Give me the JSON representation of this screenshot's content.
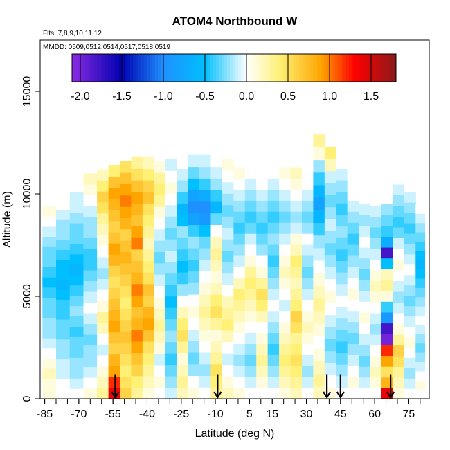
{
  "chart_data": {
    "type": "heatmap",
    "title": "ATOM4 Northbound W",
    "subtitle_flights": "Flts: 7,8,9,10,11,12",
    "subtitle_dates": "MMDD: 0509,0512,0514,0517,0518,0519",
    "xlabel": "Latitude (deg N)",
    "ylabel": "Altitude (m)",
    "xlim": [
      -87,
      84
    ],
    "ylim": [
      0,
      17500
    ],
    "x_ticks": [
      -85,
      -70,
      -55,
      -40,
      -25,
      -10,
      5,
      15,
      30,
      45,
      60,
      75
    ],
    "x_tick_labels": [
      "-85",
      "-70",
      "-55",
      "-40",
      "-25",
      "-10",
      "5",
      "15",
      "30",
      "45",
      "60",
      "75"
    ],
    "y_ticks": [
      0,
      5000,
      10000,
      15000
    ],
    "y_tick_labels": [
      "0",
      "5000",
      "10000",
      "15000"
    ],
    "colorbar": {
      "range": [
        -2.1,
        1.8
      ],
      "ticks": [
        -2.0,
        -1.5,
        -1.0,
        -0.5,
        0.0,
        0.5,
        1.0,
        1.5
      ],
      "tick_labels": [
        "-2.0",
        "-1.5",
        "-1.0",
        "-0.5",
        "0.0",
        "0.5",
        "1.0",
        "1.5"
      ],
      "colors": [
        "#8a2be2",
        "#0000b0",
        "#1e90ff",
        "#00bfff",
        "#ffffff",
        "#fff176",
        "#ffa500",
        "#ff0000",
        "#8b1a1a"
      ]
    },
    "arrow_latitudes": [
      -54,
      -9,
      39,
      45,
      67
    ],
    "columns": [
      {
        "x0": -86,
        "x1": -80,
        "top": 10400,
        "values": [
          0.1,
          0.1,
          0.2,
          0.1,
          0.0,
          -0.1,
          -0.2,
          -0.2,
          -0.3,
          -0.3,
          -0.4,
          -0.5,
          -0.4,
          -0.3,
          -0.3,
          -0.2,
          -0.1,
          0.0,
          0.1,
          0.0,
          0.0
        ]
      },
      {
        "x0": -80,
        "x1": -74,
        "top": 10200,
        "values": [
          0.0,
          0.0,
          -0.1,
          -0.1,
          -0.2,
          -0.2,
          -0.3,
          -0.3,
          -0.4,
          -0.4,
          -0.5,
          -0.6,
          -0.5,
          -0.5,
          -0.4,
          -0.3,
          -0.2,
          -0.2,
          -0.1,
          0.0,
          0.0
        ]
      },
      {
        "x0": -74,
        "x1": -68,
        "top": 10600,
        "values": [
          0.0,
          -0.1,
          -0.2,
          -0.2,
          -0.3,
          -0.3,
          -0.4,
          -0.3,
          -0.2,
          -0.3,
          -0.4,
          -0.5,
          -0.6,
          -0.5,
          -0.4,
          -0.3,
          -0.3,
          -0.2,
          -0.1,
          -0.1,
          0.0
        ]
      },
      {
        "x0": -68,
        "x1": -62,
        "top": 11000,
        "values": [
          0.1,
          0.0,
          -0.1,
          -0.2,
          -0.2,
          -0.3,
          -0.2,
          -0.1,
          0.0,
          -0.1,
          -0.2,
          -0.3,
          -0.4,
          -0.4,
          -0.3,
          -0.2,
          -0.2,
          -0.1,
          0.0,
          0.1,
          0.2
        ]
      },
      {
        "x0": -62,
        "x1": -57,
        "top": 11200,
        "values": [
          0.3,
          0.2,
          0.1,
          0.0,
          -0.1,
          0.0,
          0.2,
          0.3,
          0.1,
          0.0,
          -0.1,
          -0.2,
          -0.1,
          0.0,
          0.1,
          0.2,
          0.3,
          0.5,
          0.6,
          0.4,
          0.2
        ]
      },
      {
        "x0": -57,
        "x1": -52,
        "top": 11400,
        "values": [
          1.4,
          1.2,
          0.9,
          0.8,
          0.6,
          0.7,
          0.9,
          0.8,
          0.7,
          0.6,
          0.5,
          0.6,
          0.8,
          0.9,
          0.7,
          0.6,
          0.7,
          0.8,
          0.9,
          0.7,
          0.4
        ]
      },
      {
        "x0": -52,
        "x1": -47,
        "top": 11600,
        "values": [
          0.6,
          0.5,
          0.4,
          0.5,
          0.6,
          0.7,
          0.6,
          0.5,
          0.4,
          0.5,
          0.6,
          0.7,
          0.8,
          0.7,
          0.6,
          0.8,
          0.9,
          1.0,
          0.9,
          0.7,
          0.5
        ]
      },
      {
        "x0": -47,
        "x1": -42,
        "top": 11800,
        "values": [
          0.3,
          0.4,
          0.6,
          0.7,
          0.9,
          1.0,
          0.8,
          0.7,
          0.9,
          1.0,
          0.8,
          0.7,
          0.6,
          1.0,
          0.9,
          0.7,
          0.8,
          0.9,
          0.7,
          0.5,
          0.3
        ]
      },
      {
        "x0": -42,
        "x1": -37,
        "top": 11800,
        "values": [
          0.1,
          0.2,
          0.3,
          0.4,
          0.5,
          0.7,
          0.9,
          0.8,
          0.6,
          0.7,
          0.5,
          0.4,
          0.3,
          0.2,
          0.3,
          0.4,
          0.5,
          0.7,
          0.6,
          0.4,
          0.2
        ]
      },
      {
        "x0": -37,
        "x1": -32,
        "top": 11600,
        "values": [
          0.0,
          0.1,
          0.0,
          -0.1,
          0.1,
          0.2,
          0.3,
          0.2,
          0.1,
          0.0,
          -0.1,
          -0.2,
          -0.3,
          -0.2,
          -0.1,
          0.0,
          0.1,
          0.3,
          0.4,
          0.3,
          0.1
        ]
      },
      {
        "x0": -32,
        "x1": -27,
        "top": 11700,
        "values": [
          -0.1,
          -0.2,
          -0.3,
          -0.4,
          -0.3,
          -0.2,
          -0.3,
          -0.4,
          -0.5,
          -0.4,
          -0.3,
          -0.2,
          -0.1,
          -0.2,
          -0.3,
          -0.2,
          -0.1,
          0.0,
          0.1,
          0.0,
          -0.1
        ]
      },
      {
        "x0": -27,
        "x1": -22,
        "top": 11800,
        "values": [
          0.2,
          0.3,
          0.2,
          0.1,
          0.3,
          0.5,
          0.4,
          0.2,
          0.0,
          -0.2,
          -0.4,
          -0.5,
          -0.4,
          -0.3,
          -0.2,
          -0.5,
          -0.6,
          -0.4,
          -0.2,
          -0.1,
          0.0
        ]
      },
      {
        "x0": -22,
        "x1": -17,
        "top": 11900,
        "values": [
          0.1,
          0.0,
          -0.2,
          -0.3,
          -0.2,
          -0.1,
          0.0,
          0.1,
          0.0,
          -0.2,
          -0.3,
          -0.4,
          -0.3,
          -0.2,
          -0.4,
          -0.8,
          -1.0,
          -0.8,
          -0.5,
          -0.3,
          -0.1
        ]
      },
      {
        "x0": -17,
        "x1": -12,
        "top": 11900,
        "values": [
          0.0,
          -0.1,
          -0.2,
          -0.1,
          0.0,
          0.1,
          0.2,
          0.3,
          0.2,
          0.1,
          0.0,
          -0.1,
          -0.2,
          -0.3,
          -0.5,
          -0.9,
          -1.0,
          -0.7,
          -0.4,
          -0.2,
          -0.1
        ]
      },
      {
        "x0": -12,
        "x1": -7,
        "top": 11900,
        "values": [
          0.3,
          0.4,
          0.5,
          0.3,
          0.2,
          0.1,
          0.3,
          0.5,
          0.4,
          0.2,
          0.1,
          0.2,
          0.3,
          0.2,
          0.0,
          -0.3,
          -0.6,
          -0.4,
          -0.2,
          -0.1,
          0.0
        ]
      },
      {
        "x0": -7,
        "x1": -2,
        "top": 11700,
        "values": [
          0.2,
          0.1,
          0.0,
          -0.1,
          0.0,
          0.2,
          0.4,
          0.3,
          0.2,
          0.0,
          -0.1,
          -0.2,
          -0.3,
          -0.2,
          -0.1,
          -0.2,
          -0.3,
          -0.2,
          -0.1,
          0.0,
          0.1
        ]
      },
      {
        "x0": -2,
        "x1": 3,
        "top": 11300,
        "values": [
          0.1,
          0.0,
          -0.1,
          -0.2,
          -0.1,
          0.0,
          0.1,
          0.2,
          0.3,
          0.4,
          0.2,
          0.0,
          -0.1,
          -0.2,
          -0.3,
          -0.4,
          -0.3,
          -0.2,
          -0.1,
          0.0,
          0.1
        ]
      },
      {
        "x0": 3,
        "x1": 8,
        "top": 11300,
        "values": [
          0.0,
          -0.1,
          -0.2,
          -0.3,
          -0.2,
          -0.1,
          0.0,
          0.1,
          0.2,
          0.3,
          0.4,
          0.3,
          0.1,
          0.0,
          -0.1,
          -0.3,
          -0.4,
          -0.3,
          -0.2,
          -0.1,
          0.0
        ]
      },
      {
        "x0": 8,
        "x1": 13,
        "top": 11300,
        "values": [
          0.0,
          0.1,
          0.2,
          0.3,
          0.2,
          0.1,
          0.0,
          0.2,
          0.4,
          0.5,
          0.3,
          0.1,
          0.0,
          -0.2,
          -0.3,
          -0.4,
          -0.3,
          -0.2,
          -0.1,
          0.0,
          0.0
        ]
      },
      {
        "x0": 13,
        "x1": 18,
        "top": 11300,
        "values": [
          0.0,
          -0.1,
          -0.2,
          -0.3,
          -0.4,
          -0.3,
          -0.2,
          -0.1,
          0.0,
          -0.1,
          -0.2,
          -0.3,
          -0.4,
          -0.3,
          -0.2,
          -0.3,
          -0.4,
          -0.3,
          -0.2,
          -0.1,
          0.0
        ]
      },
      {
        "x0": 18,
        "x1": 23,
        "top": 11300,
        "values": [
          0.1,
          0.2,
          0.3,
          0.4,
          0.3,
          0.2,
          0.1,
          0.0,
          -0.1,
          0.0,
          0.1,
          0.2,
          0.1,
          0.0,
          -0.1,
          -0.2,
          -0.3,
          -0.2,
          -0.1,
          0.0,
          0.1
        ]
      },
      {
        "x0": 23,
        "x1": 28,
        "top": 11300,
        "values": [
          0.2,
          0.3,
          0.4,
          0.5,
          0.4,
          0.3,
          0.5,
          0.6,
          0.4,
          0.3,
          0.2,
          0.3,
          0.4,
          0.2,
          0.1,
          -0.1,
          -0.2,
          -0.1,
          0.0,
          0.1,
          0.2
        ]
      },
      {
        "x0": 28,
        "x1": 33,
        "top": 11300,
        "values": [
          0.0,
          -0.1,
          -0.2,
          -0.1,
          0.0,
          0.1,
          0.2,
          0.1,
          0.0,
          -0.1,
          -0.2,
          -0.3,
          -0.2,
          -0.1,
          0.0,
          -0.2,
          -0.3,
          -0.2,
          -0.1,
          0.0,
          0.0
        ]
      },
      {
        "x0": 33,
        "x1": 38,
        "top": 12900,
        "values": [
          0.2,
          0.3,
          0.2,
          0.1,
          0.0,
          0.1,
          0.2,
          0.3,
          0.2,
          0.1,
          0.0,
          -0.1,
          -0.2,
          -0.4,
          -0.6,
          -0.8,
          -0.6,
          -0.4,
          -0.2,
          0.1,
          0.3
        ]
      },
      {
        "x0": 38,
        "x1": 43,
        "top": 12300,
        "values": [
          0.1,
          0.0,
          -0.1,
          -0.2,
          -0.3,
          -0.2,
          -0.1,
          0.0,
          0.1,
          0.0,
          -0.1,
          -0.2,
          -0.3,
          -0.2,
          -0.1,
          -0.2,
          -0.3,
          -0.2,
          -0.1,
          0.2,
          0.4
        ]
      },
      {
        "x0": 43,
        "x1": 48,
        "top": 11800,
        "values": [
          0.0,
          -0.1,
          -0.2,
          -0.3,
          -0.4,
          -0.3,
          -0.2,
          -0.1,
          0.0,
          -0.1,
          -0.2,
          -0.3,
          -0.4,
          -0.3,
          -0.2,
          -0.3,
          -0.4,
          -0.3,
          -0.2,
          -0.1,
          0.0
        ]
      },
      {
        "x0": 48,
        "x1": 53,
        "top": 11300,
        "values": [
          0.0,
          0.1,
          0.0,
          -0.1,
          -0.2,
          -0.3,
          -0.2,
          -0.1,
          0.0,
          0.1,
          0.0,
          -0.1,
          -0.2,
          -0.3,
          -0.4,
          -0.3,
          -0.2,
          -0.1,
          0.0,
          0.0,
          0.0
        ]
      },
      {
        "x0": 53,
        "x1": 58,
        "top": 11100,
        "values": [
          0.0,
          -0.1,
          -0.2,
          -0.3,
          -0.2,
          -0.1,
          0.0,
          0.1,
          0.0,
          -0.1,
          -0.2,
          -0.3,
          -0.2,
          -0.1,
          0.0,
          -0.1,
          -0.2,
          -0.1,
          0.0,
          0.0,
          0.0
        ]
      },
      {
        "x0": 58,
        "x1": 63,
        "top": 11000,
        "values": [
          0.0,
          0.1,
          0.2,
          0.1,
          0.0,
          -0.1,
          -0.2,
          -0.1,
          0.0,
          0.1,
          0.2,
          0.1,
          0.0,
          -0.1,
          -0.2,
          -0.3,
          -0.2,
          -0.1,
          0.0,
          0.0,
          0.0
        ]
      },
      {
        "x0": 63,
        "x1": 68,
        "top": 11100,
        "values": [
          1.4,
          0.8,
          0.5,
          0.9,
          1.2,
          -2.0,
          -1.8,
          -0.9,
          -0.4,
          0.1,
          0.3,
          0.2,
          -0.5,
          -1.8,
          -0.7,
          -0.4,
          -0.3,
          -0.2,
          0.0,
          0.0,
          0.0
        ]
      },
      {
        "x0": 68,
        "x1": 73,
        "top": 11000,
        "values": [
          0.1,
          0.2,
          0.3,
          0.5,
          0.6,
          0.3,
          0.1,
          0.0,
          -0.1,
          -0.2,
          -0.1,
          0.0,
          0.1,
          0.0,
          -0.1,
          -0.3,
          -0.4,
          -0.3,
          -0.2,
          -0.1,
          0.0
        ]
      },
      {
        "x0": 73,
        "x1": 78,
        "top": 10600,
        "values": [
          0.0,
          -0.1,
          -0.2,
          -0.1,
          0.0,
          0.1,
          0.0,
          -0.1,
          -0.2,
          -0.3,
          -0.2,
          -0.1,
          0.0,
          -0.1,
          -0.2,
          -0.3,
          -0.4,
          -0.3,
          -0.2,
          -0.1,
          0.0
        ]
      },
      {
        "x0": 78,
        "x1": 82,
        "top": 9500,
        "values": [
          0.0,
          0.1,
          0.0,
          -0.1,
          -0.2,
          -0.3,
          -0.2,
          -0.1,
          0.0,
          -0.1,
          -0.2,
          -0.3,
          -0.4,
          -0.5,
          -0.6,
          -0.5,
          -0.4,
          -0.3,
          -0.2,
          -0.1,
          0.0
        ]
      }
    ]
  }
}
